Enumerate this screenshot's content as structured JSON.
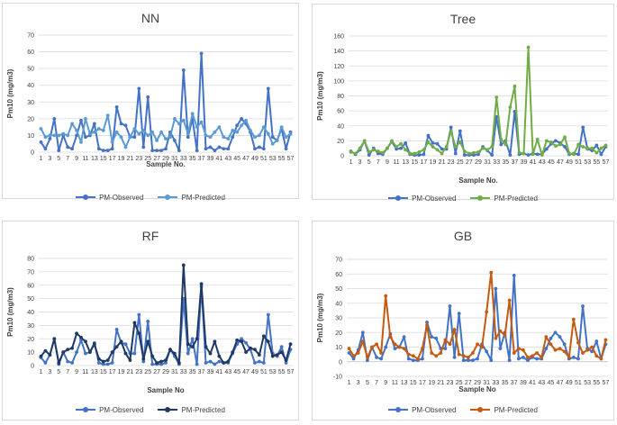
{
  "chart_data": [
    {
      "type": "line",
      "title": "NN",
      "ylabel": "Pm10 (mg/m3)",
      "xlabel": "Sample No.",
      "ylim": [
        0,
        70
      ],
      "yticks": [
        0,
        10,
        20,
        30,
        40,
        50,
        60,
        70
      ],
      "x": [
        1,
        2,
        3,
        4,
        5,
        6,
        7,
        8,
        9,
        10,
        11,
        12,
        13,
        14,
        15,
        16,
        17,
        18,
        19,
        20,
        21,
        22,
        23,
        24,
        25,
        26,
        27,
        28,
        29,
        30,
        31,
        32,
        33,
        34,
        35,
        36,
        37,
        38,
        39,
        40,
        41,
        42,
        43,
        44,
        45,
        46,
        47,
        48,
        49,
        50,
        51,
        52,
        53,
        54,
        55,
        56,
        57
      ],
      "xtick_labels": [
        "1",
        "3",
        "5",
        "7",
        "9",
        "11",
        "13",
        "15",
        "17",
        "19",
        "21",
        "23",
        "25",
        "27",
        "29",
        "31",
        "33",
        "35",
        "37",
        "39",
        "41",
        "43",
        "45",
        "47",
        "49",
        "51",
        "53",
        "55",
        "57"
      ],
      "series": [
        {
          "name": "PM-Observed",
          "color": "#4472c4",
          "values": [
            6,
            2,
            8,
            20,
            1,
            10,
            3,
            2,
            10,
            19,
            9,
            10,
            17,
            2,
            1,
            1,
            2,
            27,
            17,
            16,
            9,
            9,
            38,
            3,
            33,
            1,
            1,
            1,
            2,
            12,
            7,
            1,
            49,
            9,
            20,
            1,
            59,
            2,
            3,
            1,
            3,
            2,
            2,
            9,
            16,
            20,
            17,
            12,
            2,
            3,
            2,
            38,
            9,
            7,
            14,
            2,
            12
          ]
        },
        {
          "name": "PM-Predicted",
          "color": "#5b9bd5",
          "values": [
            14,
            9,
            10,
            10,
            10,
            11,
            10,
            17,
            13,
            6,
            20,
            11,
            12,
            14,
            13,
            22,
            6,
            12,
            9,
            3,
            9,
            14,
            11,
            13,
            10,
            12,
            7,
            12,
            8,
            9,
            20,
            17,
            19,
            11,
            23,
            15,
            18,
            10,
            9,
            12,
            15,
            9,
            8,
            13,
            12,
            16,
            19,
            13,
            9,
            10,
            15,
            11,
            5,
            7,
            15,
            9,
            11
          ]
        }
      ],
      "legend": "bottom"
    },
    {
      "type": "line",
      "title": "Tree",
      "ylabel": "Pm10 (mg/m3)",
      "xlabel": "Sample No.",
      "ylim": [
        0,
        160
      ],
      "yticks": [
        0,
        20,
        40,
        60,
        80,
        100,
        120,
        140,
        160
      ],
      "x": [
        1,
        2,
        3,
        4,
        5,
        6,
        7,
        8,
        9,
        10,
        11,
        12,
        13,
        14,
        15,
        16,
        17,
        18,
        19,
        20,
        21,
        22,
        23,
        24,
        25,
        26,
        27,
        28,
        29,
        30,
        31,
        32,
        33,
        34,
        35,
        36,
        37,
        38,
        39,
        40,
        41,
        42,
        43,
        44,
        45,
        46,
        47,
        48,
        49,
        50,
        51,
        52,
        53,
        54,
        55,
        56,
        57
      ],
      "xtick_labels": [
        "1",
        "3",
        "5",
        "7",
        "9",
        "11",
        "13",
        "15",
        "17",
        "19",
        "21",
        "23",
        "25",
        "27",
        "29",
        "31",
        "33",
        "35",
        "37",
        "39",
        "41",
        "43",
        "45",
        "47",
        "49",
        "51",
        "53",
        "55",
        "57"
      ],
      "series": [
        {
          "name": "PM-Observed",
          "color": "#4472c4",
          "values": [
            6,
            2,
            8,
            20,
            1,
            10,
            3,
            2,
            10,
            19,
            9,
            10,
            17,
            2,
            1,
            1,
            2,
            27,
            17,
            16,
            9,
            9,
            38,
            3,
            33,
            1,
            1,
            1,
            2,
            12,
            7,
            1,
            52,
            15,
            20,
            1,
            59,
            2,
            3,
            1,
            3,
            2,
            2,
            9,
            16,
            20,
            17,
            12,
            2,
            3,
            2,
            38,
            9,
            7,
            14,
            2,
            12
          ]
        },
        {
          "name": "PM-Predicted",
          "color": "#70ad47",
          "values": [
            5,
            3,
            10,
            20,
            5,
            8,
            6,
            4,
            10,
            20,
            12,
            16,
            8,
            3,
            3,
            5,
            8,
            18,
            12,
            8,
            3,
            12,
            33,
            12,
            18,
            6,
            3,
            4,
            5,
            10,
            8,
            12,
            78,
            22,
            15,
            65,
            93,
            4,
            3,
            145,
            2,
            22,
            1,
            20,
            18,
            13,
            15,
            25,
            3,
            2,
            15,
            12,
            10,
            10,
            4,
            10,
            14
          ]
        }
      ],
      "legend": "bottom"
    },
    {
      "type": "line",
      "title": "RF",
      "ylabel": "Pm10 (mg/m3)",
      "xlabel": "Sample No",
      "ylim": [
        0,
        80
      ],
      "yticks": [
        0,
        10,
        20,
        30,
        40,
        50,
        60,
        70,
        80
      ],
      "x": [
        1,
        2,
        3,
        4,
        5,
        6,
        7,
        8,
        9,
        10,
        11,
        12,
        13,
        14,
        15,
        16,
        17,
        18,
        19,
        20,
        21,
        22,
        23,
        24,
        25,
        26,
        27,
        28,
        29,
        30,
        31,
        32,
        33,
        34,
        35,
        36,
        37,
        38,
        39,
        40,
        41,
        42,
        43,
        44,
        45,
        46,
        47,
        48,
        49,
        50,
        51,
        52,
        53,
        54,
        55,
        56,
        57
      ],
      "xtick_labels": [
        "1",
        "3",
        "5",
        "7",
        "9",
        "11",
        "13",
        "15",
        "17",
        "19",
        "21",
        "23",
        "25",
        "27",
        "29",
        "31",
        "33",
        "35",
        "37",
        "39",
        "41",
        "43",
        "45",
        "47",
        "49",
        "51",
        "53",
        "55",
        "57"
      ],
      "series": [
        {
          "name": "PM-Observed",
          "color": "#4472c4",
          "values": [
            6,
            2,
            8,
            20,
            1,
            10,
            3,
            2,
            10,
            19,
            9,
            10,
            17,
            2,
            1,
            1,
            2,
            27,
            17,
            16,
            9,
            9,
            38,
            3,
            33,
            1,
            1,
            1,
            2,
            12,
            7,
            1,
            50,
            9,
            20,
            1,
            59,
            2,
            3,
            1,
            3,
            2,
            2,
            9,
            16,
            20,
            17,
            12,
            2,
            3,
            2,
            38,
            9,
            7,
            14,
            2,
            12
          ]
        },
        {
          "name": "PM-Predicted",
          "color": "#203864",
          "values": [
            7,
            11,
            8,
            20,
            2,
            10,
            12,
            13,
            24,
            21,
            18,
            10,
            16,
            5,
            3,
            4,
            10,
            14,
            18,
            9,
            4,
            32,
            24,
            5,
            18,
            7,
            2,
            3,
            4,
            12,
            9,
            2,
            75,
            16,
            14,
            20,
            61,
            14,
            9,
            18,
            7,
            2,
            3,
            10,
            19,
            18,
            10,
            13,
            12,
            8,
            22,
            18,
            7,
            8,
            10,
            4,
            16
          ]
        }
      ],
      "legend": "bottom"
    },
    {
      "type": "line",
      "title": "GB",
      "ylabel": "Pm10 (mg/m3)",
      "xlabel": "Sample No",
      "ylim": [
        -10,
        70
      ],
      "yticks": [
        -10,
        0,
        10,
        20,
        30,
        40,
        50,
        60,
        70
      ],
      "x": [
        1,
        2,
        3,
        4,
        5,
        6,
        7,
        8,
        9,
        10,
        11,
        12,
        13,
        14,
        15,
        16,
        17,
        18,
        19,
        20,
        21,
        22,
        23,
        24,
        25,
        26,
        27,
        28,
        29,
        30,
        31,
        32,
        33,
        34,
        35,
        36,
        37,
        38,
        39,
        40,
        41,
        42,
        43,
        44,
        45,
        46,
        47,
        48,
        49,
        50,
        51,
        52,
        53,
        54,
        55,
        56,
        57
      ],
      "xtick_labels": [
        "1",
        "3",
        "5",
        "7",
        "9",
        "11",
        "13",
        "15",
        "17",
        "19",
        "21",
        "23",
        "25",
        "27",
        "29",
        "31",
        "33",
        "35",
        "37",
        "39",
        "41",
        "43",
        "45",
        "47",
        "49",
        "51",
        "53",
        "55",
        "57"
      ],
      "series": [
        {
          "name": "PM-Observed",
          "color": "#4472c4",
          "values": [
            6,
            2,
            8,
            20,
            1,
            10,
            3,
            2,
            10,
            19,
            9,
            10,
            17,
            2,
            1,
            1,
            2,
            27,
            17,
            16,
            9,
            9,
            38,
            3,
            33,
            1,
            1,
            1,
            2,
            12,
            7,
            1,
            50,
            9,
            20,
            1,
            59,
            2,
            3,
            1,
            3,
            2,
            2,
            9,
            16,
            20,
            17,
            12,
            2,
            3,
            2,
            38,
            9,
            7,
            14,
            2,
            12
          ]
        },
        {
          "name": "PM-Predicted",
          "color": "#c55a11",
          "values": [
            9,
            4,
            6,
            14,
            3,
            10,
            12,
            6,
            45,
            17,
            12,
            10,
            9,
            5,
            4,
            2,
            9,
            25,
            6,
            4,
            6,
            15,
            12,
            22,
            5,
            4,
            3,
            6,
            12,
            10,
            34,
            61,
            16,
            21,
            18,
            42,
            6,
            9,
            8,
            3,
            4,
            6,
            3,
            17,
            12,
            8,
            9,
            7,
            3,
            29,
            13,
            6,
            8,
            10,
            4,
            2,
            15
          ]
        }
      ],
      "legend": "bottom"
    }
  ]
}
